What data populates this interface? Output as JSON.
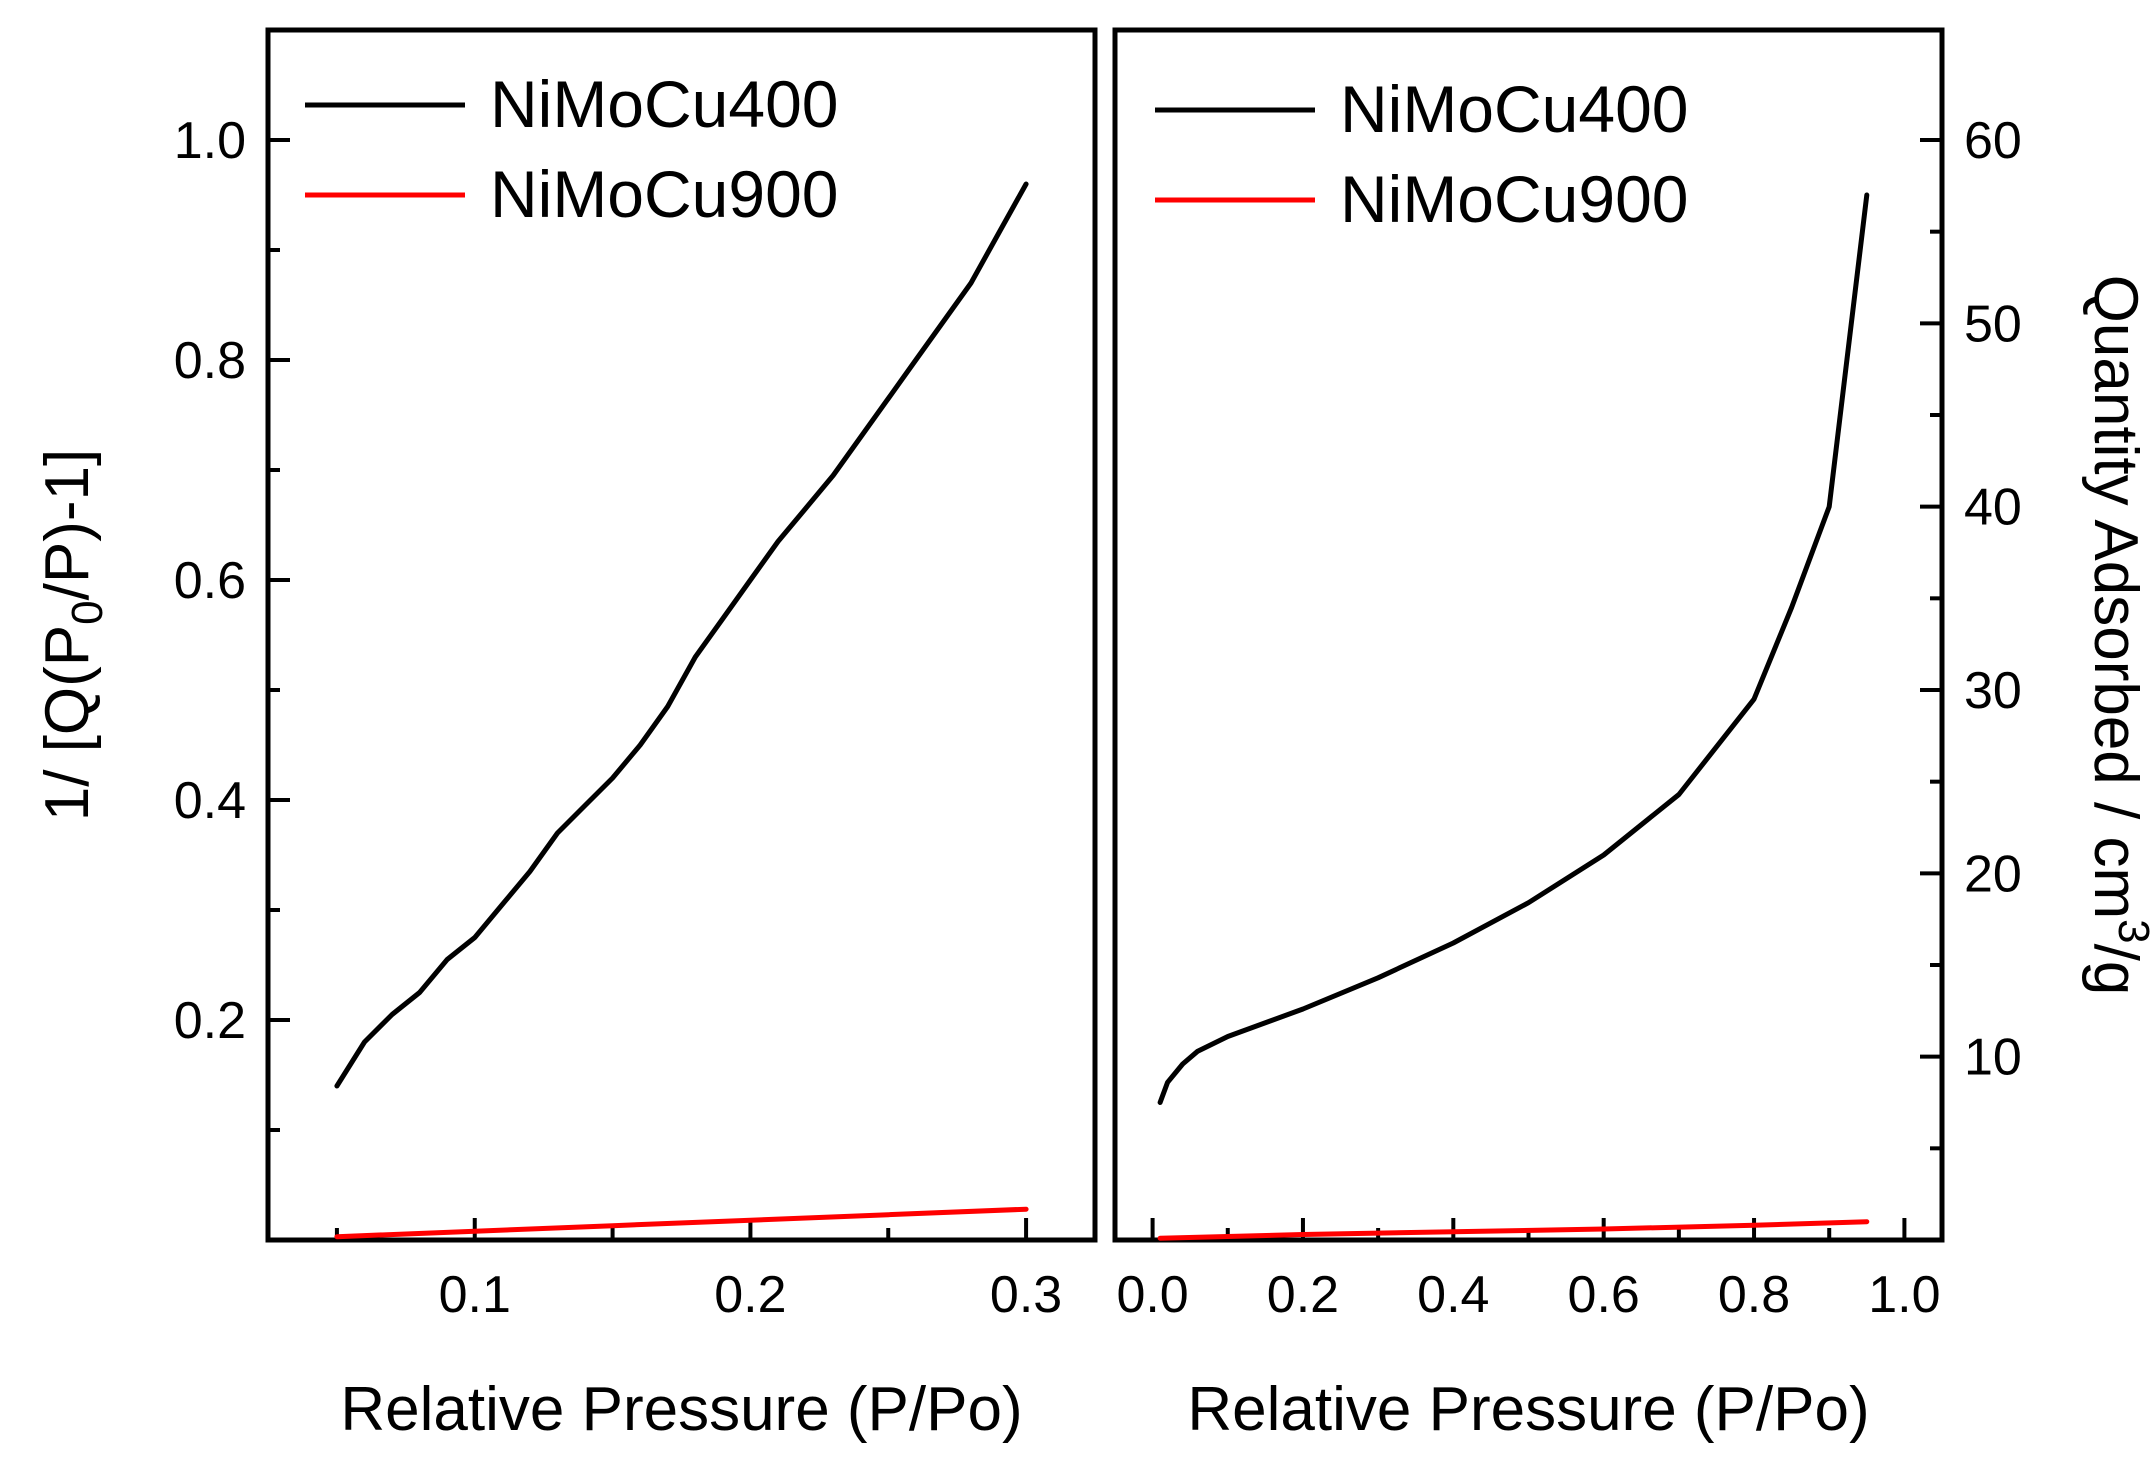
{
  "chart_data": [
    {
      "type": "line",
      "panel": "left",
      "xlabel": "Relative Pressure (P/Po)",
      "ylabel": "1/ [Q(P0/P)-1]",
      "ylabel_parts": {
        "pre": "1/ [Q(P",
        "sub": "0",
        "post": "/P)-1]"
      },
      "xlim": [
        0.025,
        0.325
      ],
      "ylim": [
        0.0,
        1.1
      ],
      "xticks": [
        0.1,
        0.2,
        0.3
      ],
      "xtick_labels": [
        "0.1",
        "0.2",
        "0.3"
      ],
      "x_minor_ticks": [
        0.05,
        0.15,
        0.25
      ],
      "yticks": [
        0.2,
        0.4,
        0.6,
        0.8,
        1.0
      ],
      "ytick_labels": [
        "0.2",
        "0.4",
        "0.6",
        "0.8",
        "1.0"
      ],
      "y_minor_ticks": [
        0.1,
        0.3,
        0.5,
        0.7,
        0.9
      ],
      "legend_position": "top-left",
      "series": [
        {
          "name": "NiMoCu400",
          "color": "#000000",
          "x": [
            0.05,
            0.06,
            0.07,
            0.08,
            0.09,
            0.1,
            0.11,
            0.12,
            0.13,
            0.14,
            0.15,
            0.16,
            0.17,
            0.18,
            0.19,
            0.2,
            0.21,
            0.22,
            0.23,
            0.24,
            0.25,
            0.26,
            0.27,
            0.28,
            0.29,
            0.3
          ],
          "values": [
            0.14,
            0.18,
            0.205,
            0.225,
            0.255,
            0.275,
            0.305,
            0.335,
            0.37,
            0.395,
            0.42,
            0.45,
            0.485,
            0.53,
            0.565,
            0.6,
            0.635,
            0.665,
            0.695,
            0.73,
            0.765,
            0.8,
            0.835,
            0.87,
            0.915,
            0.96
          ]
        },
        {
          "name": "NiMoCu900",
          "color": "#ff0000",
          "x": [
            0.05,
            0.1,
            0.15,
            0.2,
            0.25,
            0.3
          ],
          "values": [
            0.003,
            0.008,
            0.013,
            0.018,
            0.023,
            0.028
          ]
        }
      ]
    },
    {
      "type": "line",
      "panel": "right",
      "xlabel": "Relative Pressure (P/Po)",
      "ylabel": "Quantity Adsorbed / cm3/g",
      "ylabel_parts": {
        "pre": "Quantity Adsorbed / cm",
        "sup": "3",
        "post": "/g"
      },
      "xlim": [
        -0.05,
        1.05
      ],
      "ylim": [
        0.0,
        66.0
      ],
      "xticks": [
        0.0,
        0.2,
        0.4,
        0.6,
        0.8,
        1.0
      ],
      "xtick_labels": [
        "0.0",
        "0.2",
        "0.4",
        "0.6",
        "0.8",
        "1.0"
      ],
      "x_minor_ticks": [
        0.1,
        0.3,
        0.5,
        0.7,
        0.9
      ],
      "yticks": [
        10,
        20,
        30,
        40,
        50,
        60
      ],
      "ytick_labels": [
        "10",
        "20",
        "30",
        "40",
        "50",
        "60"
      ],
      "y_minor_ticks": [
        5,
        15,
        25,
        35,
        45,
        55
      ],
      "y_axis_side": "right",
      "legend_position": "top-left",
      "series": [
        {
          "name": "NiMoCu400",
          "color": "#000000",
          "x": [
            0.01,
            0.02,
            0.04,
            0.06,
            0.1,
            0.2,
            0.3,
            0.4,
            0.5,
            0.6,
            0.7,
            0.8,
            0.85,
            0.9,
            0.95
          ],
          "values": [
            7.5,
            8.6,
            9.6,
            10.3,
            11.1,
            12.6,
            14.3,
            16.2,
            18.4,
            21.0,
            24.3,
            29.5,
            34.5,
            40.0,
            57.0
          ]
        },
        {
          "name": "NiMoCu900",
          "color": "#ff0000",
          "x": [
            0.01,
            0.2,
            0.4,
            0.6,
            0.8,
            0.95
          ],
          "values": [
            0.1,
            0.3,
            0.45,
            0.6,
            0.8,
            1.0
          ]
        }
      ]
    }
  ]
}
